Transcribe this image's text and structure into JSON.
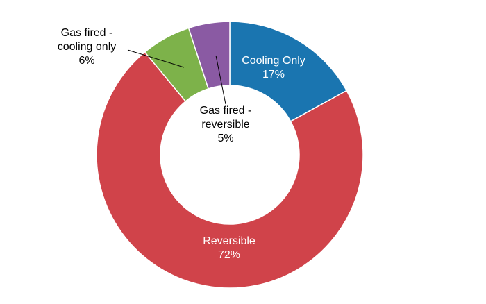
{
  "chart_data": {
    "type": "donut",
    "categories": [
      "Cooling Only",
      "Reversible",
      "Gas fired - cooling only",
      "Gas fired - reversible"
    ],
    "values": [
      17,
      72,
      6,
      5
    ],
    "value_labels": [
      "17%",
      "72%",
      "6%",
      "5%"
    ],
    "colors": [
      "#1a75b0",
      "#d0434a",
      "#7db24a",
      "#8a5aa3"
    ]
  }
}
